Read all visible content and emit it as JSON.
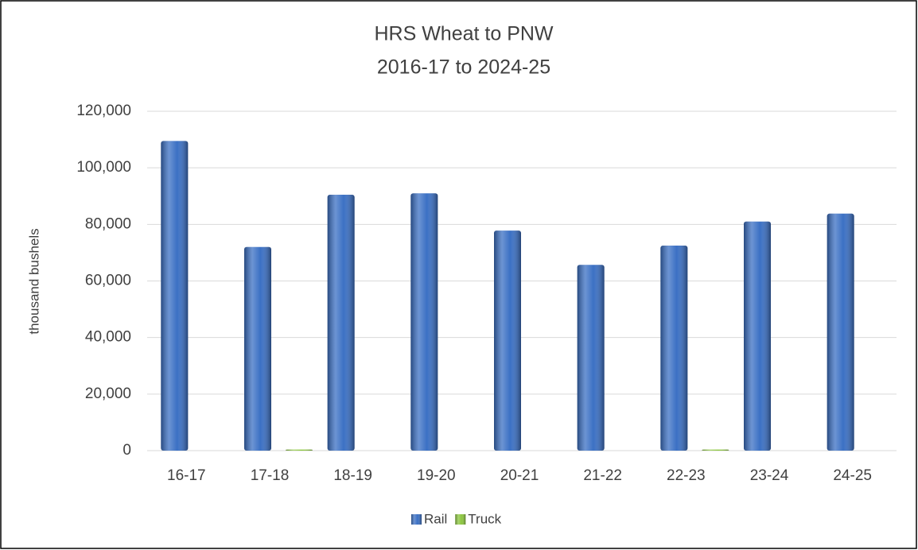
{
  "chart_data": {
    "type": "bar",
    "title": "HRS Wheat to PNW",
    "subtitle": "2016-17 to 2024-25",
    "y_label": "thousand bushels",
    "categories": [
      "16-17",
      "17-18",
      "18-19",
      "19-20",
      "20-21",
      "21-22",
      "22-23",
      "23-24",
      "24-25"
    ],
    "series": [
      {
        "name": "Rail",
        "color": "#3b70c4",
        "values": [
          109500,
          72000,
          90500,
          91000,
          77800,
          65700,
          72500,
          81000,
          83800
        ]
      },
      {
        "name": "Truck",
        "color": "#8cc63f",
        "values": [
          0,
          400,
          0,
          0,
          0,
          0,
          400,
          0,
          0
        ]
      }
    ],
    "ylim": [
      0,
      120000
    ],
    "yticks": [
      0,
      {
        "value": 20000,
        "label": "20,000"
      },
      {
        "value": 40000,
        "label": "40,000"
      },
      {
        "value": 60000,
        "label": "60,000"
      },
      {
        "value": 80000,
        "label": "80,000"
      },
      {
        "value": 100000,
        "label": "100,000"
      },
      {
        "value": 120000,
        "label": "120,000"
      }
    ],
    "grid": true,
    "legend": "bottom"
  }
}
